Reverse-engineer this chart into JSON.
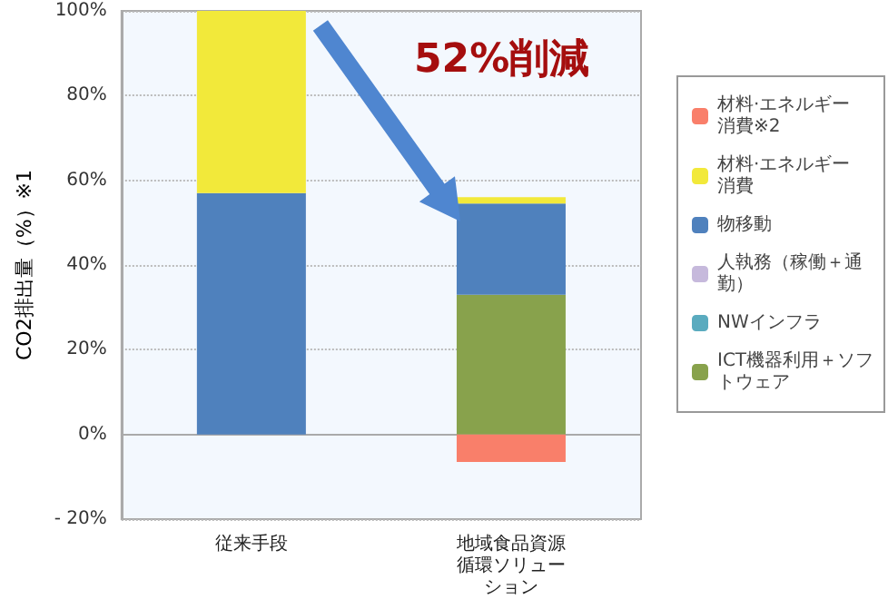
{
  "chart_data": {
    "type": "bar",
    "stacked": true,
    "ylabel": "CO2排出量（%）※1",
    "categories": [
      "従来手段",
      "地域食品資源循環ソリューション"
    ],
    "series": [
      {
        "name": "ICT機器利用＋ソフトウェア",
        "color": "#88a24c",
        "values": [
          null,
          33
        ]
      },
      {
        "name": "NWインフラ",
        "color": "#5aabbf",
        "values": [
          null,
          null
        ]
      },
      {
        "name": "人執務（稼働＋通勤）",
        "color": "#c6b9dc",
        "values": [
          null,
          null
        ]
      },
      {
        "name": "物移動",
        "color": "#4f81bd",
        "values": [
          57,
          21.5
        ]
      },
      {
        "name": "材料·エネルギー消費",
        "color": "#f2e93a",
        "values": [
          43,
          1.5
        ]
      },
      {
        "name": "材料·エネルギー消費※2",
        "color": "#f97f6a",
        "values": [
          null,
          -6.5
        ]
      }
    ],
    "ylim": [
      -20,
      100
    ],
    "yticks": [
      {
        "value": -20,
        "label": "- 20%"
      },
      {
        "value": 0,
        "label": "0%"
      },
      {
        "value": 20,
        "label": "20%"
      },
      {
        "value": 40,
        "label": "40%"
      },
      {
        "value": 60,
        "label": "60%"
      },
      {
        "value": 80,
        "label": "80%"
      },
      {
        "value": 100,
        "label": "100%"
      }
    ],
    "grid": "y",
    "legend": "right",
    "annotations": [
      "52%削減"
    ]
  }
}
